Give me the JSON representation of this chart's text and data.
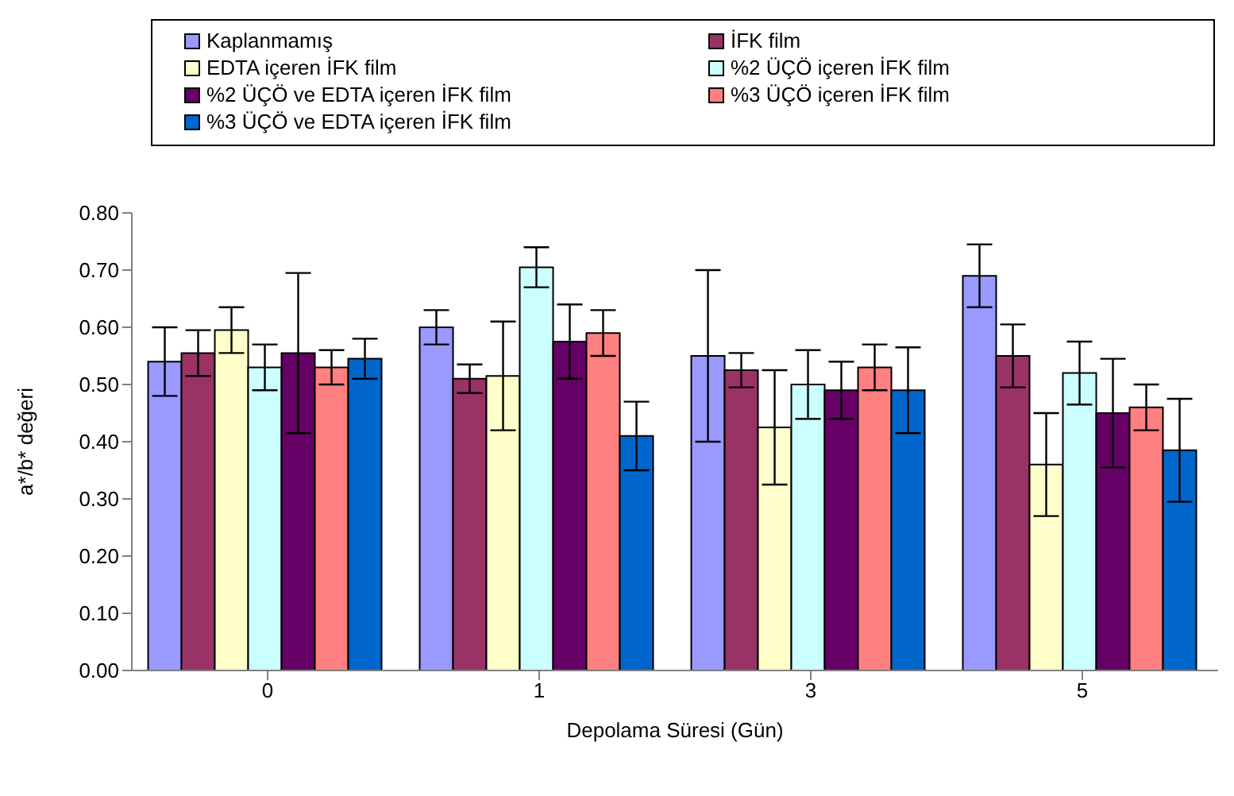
{
  "chart_data": {
    "type": "bar",
    "xlabel": "Depolama Süresi (Gün)",
    "ylabel": "a*/b* değeri",
    "categories": [
      "0",
      "1",
      "3",
      "5"
    ],
    "ylim": [
      0,
      0.8
    ],
    "yticks": [
      {
        "value": 0,
        "label": "0.00"
      },
      {
        "value": 0.1,
        "label": "0.10"
      },
      {
        "value": 0.2,
        "label": "0.20"
      },
      {
        "value": 0.3,
        "label": "0.30"
      },
      {
        "value": 0.4,
        "label": "0.40"
      },
      {
        "value": 0.5,
        "label": "0.50"
      },
      {
        "value": 0.6,
        "label": "0.60"
      },
      {
        "value": 0.7,
        "label": "0.70"
      },
      {
        "value": 0.8,
        "label": "0.80"
      }
    ],
    "grid": false,
    "legend": "top",
    "series": [
      {
        "name": "Kaplanmamış",
        "color": "#9999ff",
        "values": [
          0.54,
          0.6,
          0.55,
          0.69
        ],
        "errors": [
          0.06,
          0.03,
          0.15,
          0.055
        ]
      },
      {
        "name": "İFK film",
        "color": "#993366",
        "values": [
          0.555,
          0.51,
          0.525,
          0.55
        ],
        "errors": [
          0.04,
          0.025,
          0.03,
          0.055
        ]
      },
      {
        "name": "EDTA içeren İFK film",
        "color": "#ffffcc",
        "values": [
          0.595,
          0.515,
          0.425,
          0.36
        ],
        "errors": [
          0.04,
          0.095,
          0.1,
          0.09
        ]
      },
      {
        "name": "%2 ÜÇÖ içeren İFK film",
        "color": "#ccffff",
        "values": [
          0.53,
          0.705,
          0.5,
          0.52
        ],
        "errors": [
          0.04,
          0.035,
          0.06,
          0.055
        ]
      },
      {
        "name": "%2 ÜÇÖ ve EDTA içeren İFK film",
        "color": "#660066",
        "values": [
          0.555,
          0.575,
          0.49,
          0.45
        ],
        "errors": [
          0.14,
          0.065,
          0.05,
          0.095
        ]
      },
      {
        "name": "%3 ÜÇÖ içeren İFK film",
        "color": "#ff8080",
        "values": [
          0.53,
          0.59,
          0.53,
          0.46
        ],
        "errors": [
          0.03,
          0.04,
          0.04,
          0.04
        ]
      },
      {
        "name": "%3 ÜÇÖ ve EDTA içeren İFK film",
        "color": "#0066cc",
        "values": [
          0.545,
          0.41,
          0.49,
          0.385
        ],
        "errors": [
          0.035,
          0.06,
          0.075,
          0.09
        ]
      }
    ]
  }
}
